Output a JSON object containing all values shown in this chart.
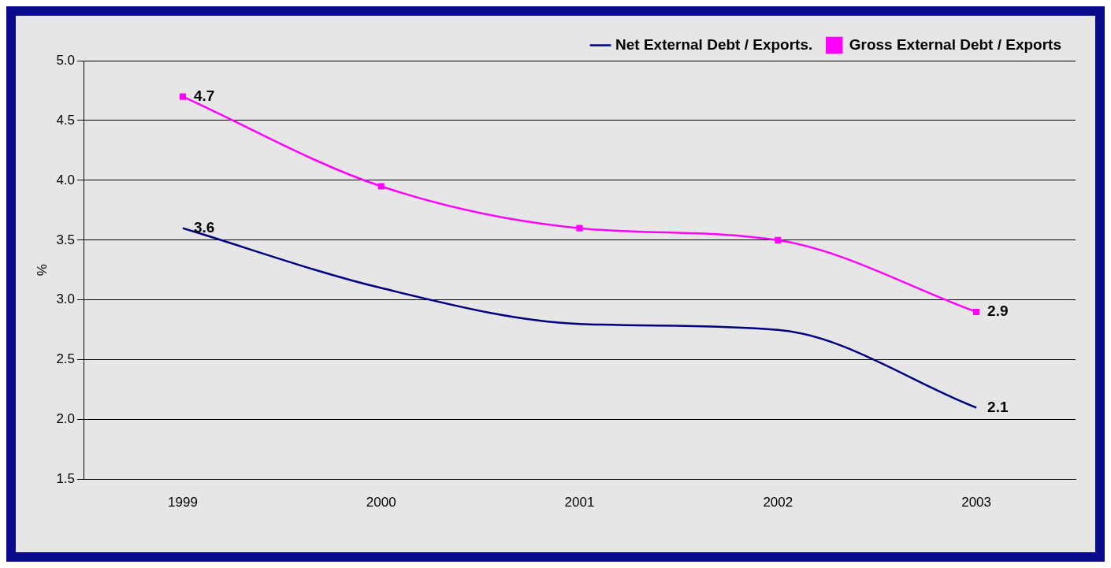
{
  "chart_data": {
    "type": "line",
    "ylabel": "%",
    "categories": [
      "1999",
      "2000",
      "2001",
      "2002",
      "2003"
    ],
    "series": [
      {
        "name": "Net External Debt / Exports.",
        "color": "#000080",
        "values": [
          3.6,
          3.1,
          2.8,
          2.75,
          2.1
        ],
        "value_labels": [
          "3.6",
          null,
          null,
          null,
          "2.1"
        ],
        "marker": "none"
      },
      {
        "name": "Gross External Debt / Exports",
        "color": "#ff00ff",
        "values": [
          4.7,
          3.95,
          3.6,
          3.5,
          2.9
        ],
        "value_labels": [
          "4.7",
          null,
          null,
          null,
          "2.9"
        ],
        "marker": "square"
      }
    ],
    "ylim": [
      1.5,
      5.0
    ],
    "yticks": [
      {
        "value": 1.5,
        "label": "1.5"
      },
      {
        "value": 2,
        "label": "2.0"
      },
      {
        "value": 2.5,
        "label": "2.5"
      },
      {
        "value": 3,
        "label": "3.0"
      },
      {
        "value": 3.5,
        "label": "3.5"
      },
      {
        "value": 4,
        "label": "4.0"
      },
      {
        "value": 4.5,
        "label": "4.5"
      },
      {
        "value": 5,
        "label": "5.0"
      }
    ],
    "grid": "y",
    "legend": "top right",
    "line_style": "solid"
  }
}
